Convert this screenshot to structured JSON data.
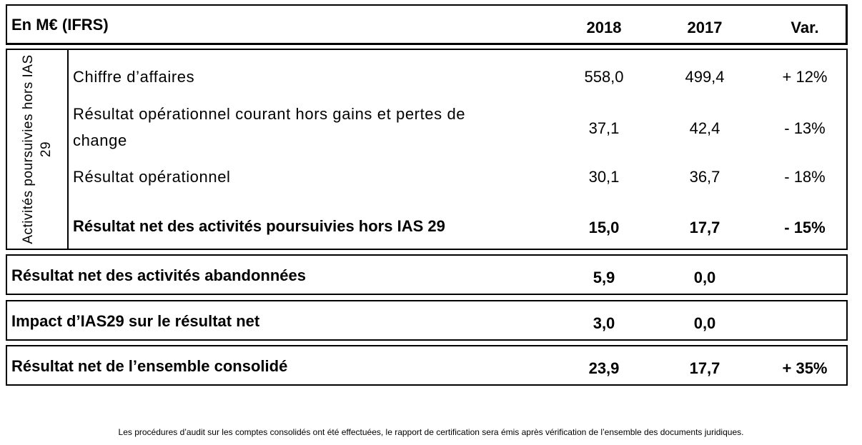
{
  "header": {
    "label": "En M€ (IFRS)",
    "col_2018": "2018",
    "col_2017": "2017",
    "col_var": "Var."
  },
  "section": {
    "side_label": "Activités poursuivies hors IAS 29",
    "rows": [
      {
        "label": "Chiffre d’affaires",
        "v2018": "558,0",
        "v2017": "499,4",
        "var": "+ 12%"
      },
      {
        "label_line1": "Résultat opérationnel  courant hors gains et pertes de",
        "label_line2": "change",
        "v2018": "37,1",
        "v2017": "42,4",
        "var": "- 13%"
      },
      {
        "label": "Résultat opérationnel",
        "v2018": "30,1",
        "v2017": "36,7",
        "var": "- 18%"
      },
      {
        "label": "Résultat net des activités poursuivies hors IAS 29",
        "v2018": "15,0",
        "v2017": "17,7",
        "var": "- 15%"
      }
    ]
  },
  "discontinued": {
    "label": "Résultat net des activités abandonnées",
    "v2018": "5,9",
    "v2017": "0,0",
    "var": ""
  },
  "ias29": {
    "label": "Impact d’IAS29 sur le résultat net",
    "v2018": "3,0",
    "v2017": "0,0",
    "var": ""
  },
  "total": {
    "label": "Résultat net de l’ensemble consolidé",
    "v2018": "23,9",
    "v2017": "17,7",
    "var": "+ 35%"
  },
  "footnote": "Les procédures d’audit sur les comptes consolidés ont été effectuées, le rapport de certification sera émis après vérification de l’ensemble des documents juridiques."
}
